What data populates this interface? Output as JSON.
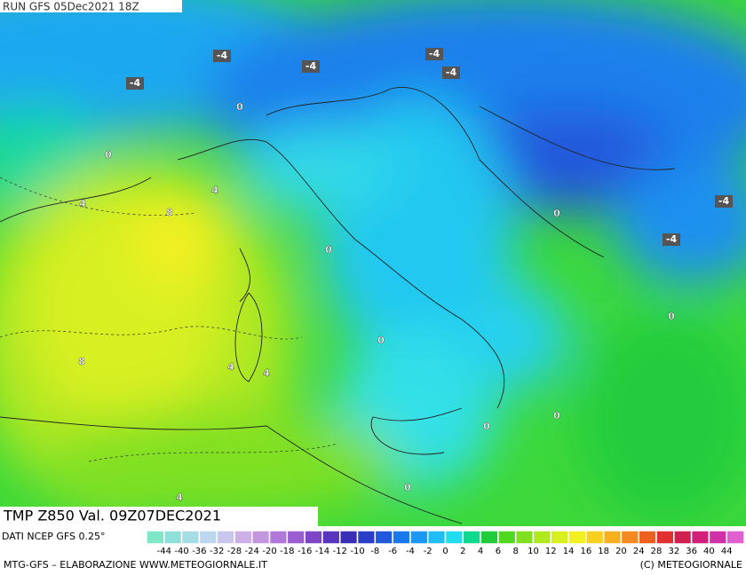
{
  "header": {
    "run": "RUN GFS 05Dec2021 18Z"
  },
  "map": {
    "field": "TMP Z850 Val. 09Z07DEC2021",
    "contour_labels": [
      -4,
      -4,
      -4,
      -4,
      -4,
      0,
      0,
      4,
      4,
      8,
      0,
      -4,
      -4,
      0,
      0,
      0,
      8,
      4,
      4,
      0,
      0,
      0,
      4
    ]
  },
  "colorbar": {
    "source": "DATI NCEP GFS 0.25°",
    "labels": [
      -44,
      -40,
      -36,
      -32,
      -28,
      -24,
      -20,
      -18,
      -16,
      -14,
      -12,
      -10,
      -8,
      -6,
      -4,
      -2,
      0,
      2,
      4,
      6,
      8,
      10,
      12,
      14,
      16,
      18,
      20,
      24,
      28,
      32,
      36,
      40,
      44
    ],
    "colors": [
      "#7fe6c8",
      "#8fe0d8",
      "#a6dce6",
      "#bcd6ee",
      "#c9c6ee",
      "#cdb0e8",
      "#c496e0",
      "#b078d8",
      "#9a5ed0",
      "#7c46c6",
      "#5a36be",
      "#3a2eb6",
      "#2a3ec8",
      "#2258dc",
      "#1a78ec",
      "#1c98f4",
      "#20bcf4",
      "#20dcec",
      "#10d890",
      "#20cc3c",
      "#50d820",
      "#80e020",
      "#b0e820",
      "#d8f020",
      "#f4f020",
      "#f8d020",
      "#f8b020",
      "#f48a20",
      "#ee6020",
      "#e03030",
      "#d02050",
      "#d0207a",
      "#d030a8",
      "#e060d0"
    ]
  },
  "footer": {
    "left": "MTG-GFS – ELABORAZIONE WWW.METEOGIORNALE.IT",
    "right": "(C) METEOGIORNALE"
  }
}
